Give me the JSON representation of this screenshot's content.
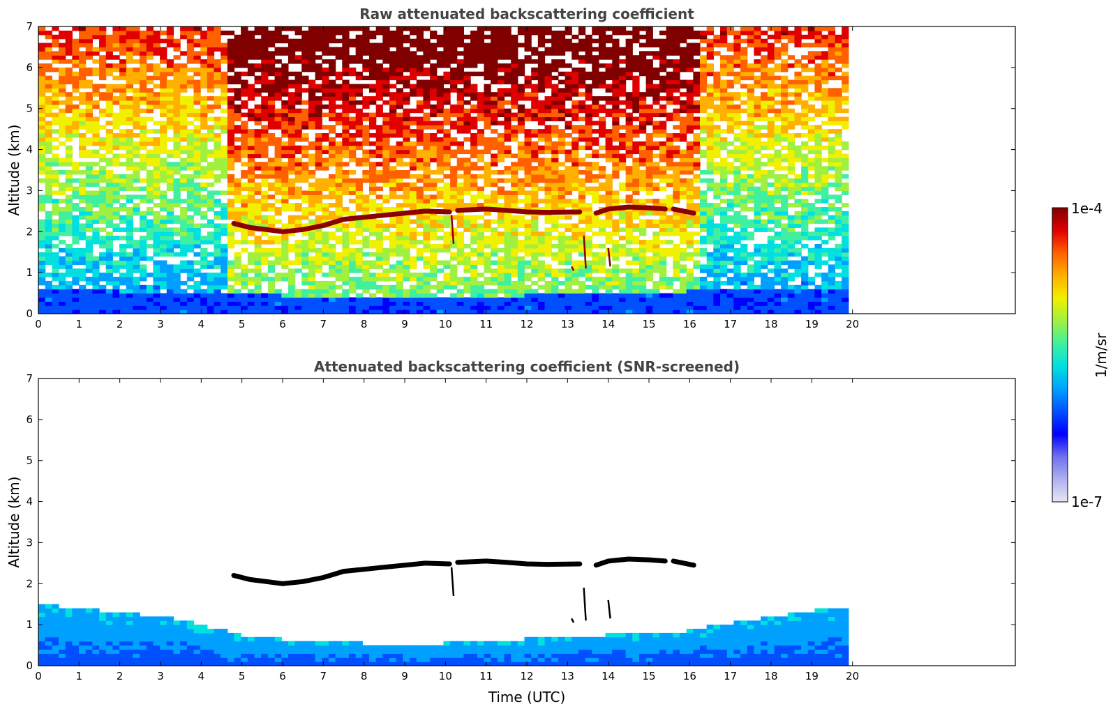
{
  "chart_data": [
    {
      "type": "heatmap",
      "title": "Raw attenuated backscattering coefficient",
      "xlabel": "",
      "ylabel": "Altitude (km)",
      "xlim": [
        0,
        24
      ],
      "ylim": [
        0,
        7
      ],
      "x_ticks": [
        "0",
        "1",
        "2",
        "3",
        "4",
        "5",
        "6",
        "7",
        "8",
        "9",
        "10",
        "11",
        "12",
        "13",
        "14",
        "15",
        "16",
        "17",
        "18",
        "19",
        "20"
      ],
      "y_ticks": [
        "0",
        "1",
        "2",
        "3",
        "4",
        "5",
        "6",
        "7"
      ],
      "data_extent_x": [
        0,
        19.9
      ],
      "noise": "high",
      "features": {
        "boundary_layer_top_km": [
          [
            0,
            0.6
          ],
          [
            2,
            0.55
          ],
          [
            4,
            0.5
          ],
          [
            6,
            0.45
          ],
          [
            8,
            0.4
          ],
          [
            10,
            0.4
          ],
          [
            12,
            0.45
          ],
          [
            14,
            0.5
          ],
          [
            16,
            0.55
          ],
          [
            18,
            0.6
          ],
          [
            19.9,
            0.65
          ]
        ],
        "cloud_layer_km": [
          [
            4.8,
            2.2
          ],
          [
            5.2,
            2.1
          ],
          [
            6.0,
            2.0
          ],
          [
            6.5,
            2.05
          ],
          [
            7.0,
            2.15
          ],
          [
            7.5,
            2.3
          ],
          [
            8.0,
            2.35
          ],
          [
            8.5,
            2.4
          ],
          [
            9.0,
            2.45
          ],
          [
            9.5,
            2.5
          ],
          [
            10.1,
            2.48
          ],
          [
            10.3,
            2.52
          ],
          [
            11.0,
            2.55
          ],
          [
            11.5,
            2.52
          ],
          [
            12.0,
            2.48
          ],
          [
            12.5,
            2.47
          ],
          [
            13.3,
            2.48
          ],
          [
            13.7,
            2.45
          ],
          [
            14.0,
            2.55
          ],
          [
            14.5,
            2.6
          ],
          [
            15.0,
            2.58
          ],
          [
            15.4,
            2.55
          ],
          [
            15.6,
            2.55
          ],
          [
            16.1,
            2.45
          ]
        ],
        "cloud_gaps_utc": [
          [
            10.15,
            10.25
          ],
          [
            13.35,
            13.65
          ],
          [
            15.45,
            15.55
          ]
        ],
        "fallstreaks": [
          {
            "x": 10.15,
            "y_top": 2.4,
            "y_bottom": 1.7
          },
          {
            "x": 13.4,
            "y_top": 1.9,
            "y_bottom": 1.1
          },
          {
            "x": 14.0,
            "y_top": 1.6,
            "y_bottom": 1.15
          },
          {
            "x": 13.1,
            "y_top": 1.15,
            "y_bottom": 1.05
          }
        ]
      }
    },
    {
      "type": "heatmap",
      "title": "Attenuated backscattering coefficient (SNR-screened)",
      "xlabel": "Time (UTC)",
      "ylabel": "Altitude (km)",
      "xlim": [
        0,
        24
      ],
      "ylim": [
        0,
        7
      ],
      "x_ticks": [
        "0",
        "1",
        "2",
        "3",
        "4",
        "5",
        "6",
        "7",
        "8",
        "9",
        "10",
        "11",
        "12",
        "13",
        "14",
        "15",
        "16",
        "17",
        "18",
        "19",
        "20"
      ],
      "y_ticks": [
        "0",
        "1",
        "2",
        "3",
        "4",
        "5",
        "6",
        "7"
      ],
      "data_extent_x": [
        0,
        19.9
      ],
      "noise": "screened",
      "features": {
        "valid_signal_top_km": [
          [
            0,
            1.5
          ],
          [
            1,
            1.4
          ],
          [
            2,
            1.3
          ],
          [
            3,
            1.2
          ],
          [
            4,
            1.0
          ],
          [
            5,
            0.75
          ],
          [
            6,
            0.65
          ],
          [
            7,
            0.6
          ],
          [
            8,
            0.55
          ],
          [
            9,
            0.5
          ],
          [
            10,
            0.55
          ],
          [
            11,
            0.6
          ],
          [
            12,
            0.65
          ],
          [
            13,
            0.7
          ],
          [
            14,
            0.75
          ],
          [
            15,
            0.8
          ],
          [
            16,
            0.85
          ],
          [
            17,
            1.05
          ],
          [
            18,
            1.2
          ],
          [
            19,
            1.35
          ],
          [
            19.9,
            1.45
          ]
        ],
        "cloud_color": "#000000"
      }
    }
  ],
  "colorbar": {
    "label": "1/m/sr",
    "max_label": "1e-4",
    "min_label": "1e-7",
    "min": 1e-07,
    "max": 0.0001,
    "scale": "log",
    "colors": [
      "#e6e6f5",
      "#b0b0f0",
      "#7070f0",
      "#0000ff",
      "#0050ff",
      "#00a0ff",
      "#00e0e0",
      "#40f0a0",
      "#a0f040",
      "#f0f000",
      "#ffb000",
      "#ff6000",
      "#e00000",
      "#800000"
    ]
  }
}
